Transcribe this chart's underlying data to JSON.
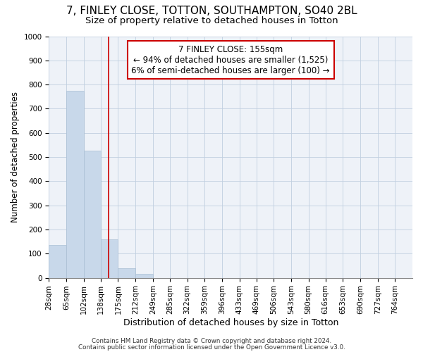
{
  "title1": "7, FINLEY CLOSE, TOTTON, SOUTHAMPTON, SO40 2BL",
  "title2": "Size of property relative to detached houses in Totton",
  "xlabel": "Distribution of detached houses by size in Totton",
  "ylabel": "Number of detached properties",
  "bin_edges": [
    28,
    65,
    102,
    138,
    175,
    212,
    249,
    285,
    322,
    359,
    396,
    433,
    469,
    506,
    543,
    580,
    616,
    653,
    690,
    727,
    764
  ],
  "bar_heights": [
    135,
    775,
    525,
    160,
    40,
    15,
    0,
    0,
    0,
    0,
    0,
    0,
    0,
    0,
    0,
    0,
    0,
    0,
    0,
    0
  ],
  "bar_color": "#c8d8ea",
  "bar_edgecolor": "#aabfd4",
  "vline_x": 155,
  "vline_color": "#cc0000",
  "annotation_line1": "7 FINLEY CLOSE: 155sqm",
  "annotation_line2": "← 94% of detached houses are smaller (1,525)",
  "annotation_line3": "6% of semi-detached houses are larger (100) →",
  "annotation_box_edgecolor": "#cc0000",
  "annotation_box_facecolor": "#ffffff",
  "ylim": [
    0,
    1000
  ],
  "yticks": [
    0,
    100,
    200,
    300,
    400,
    500,
    600,
    700,
    800,
    900,
    1000
  ],
  "footer1": "Contains HM Land Registry data © Crown copyright and database right 2024.",
  "footer2": "Contains public sector information licensed under the Open Government Licence v3.0.",
  "plot_bg_color": "#eef2f8",
  "title1_fontsize": 11,
  "title2_fontsize": 9.5,
  "tick_fontsize": 7.5,
  "ylabel_fontsize": 8.5,
  "xlabel_fontsize": 9,
  "annotation_fontsize": 8.5
}
